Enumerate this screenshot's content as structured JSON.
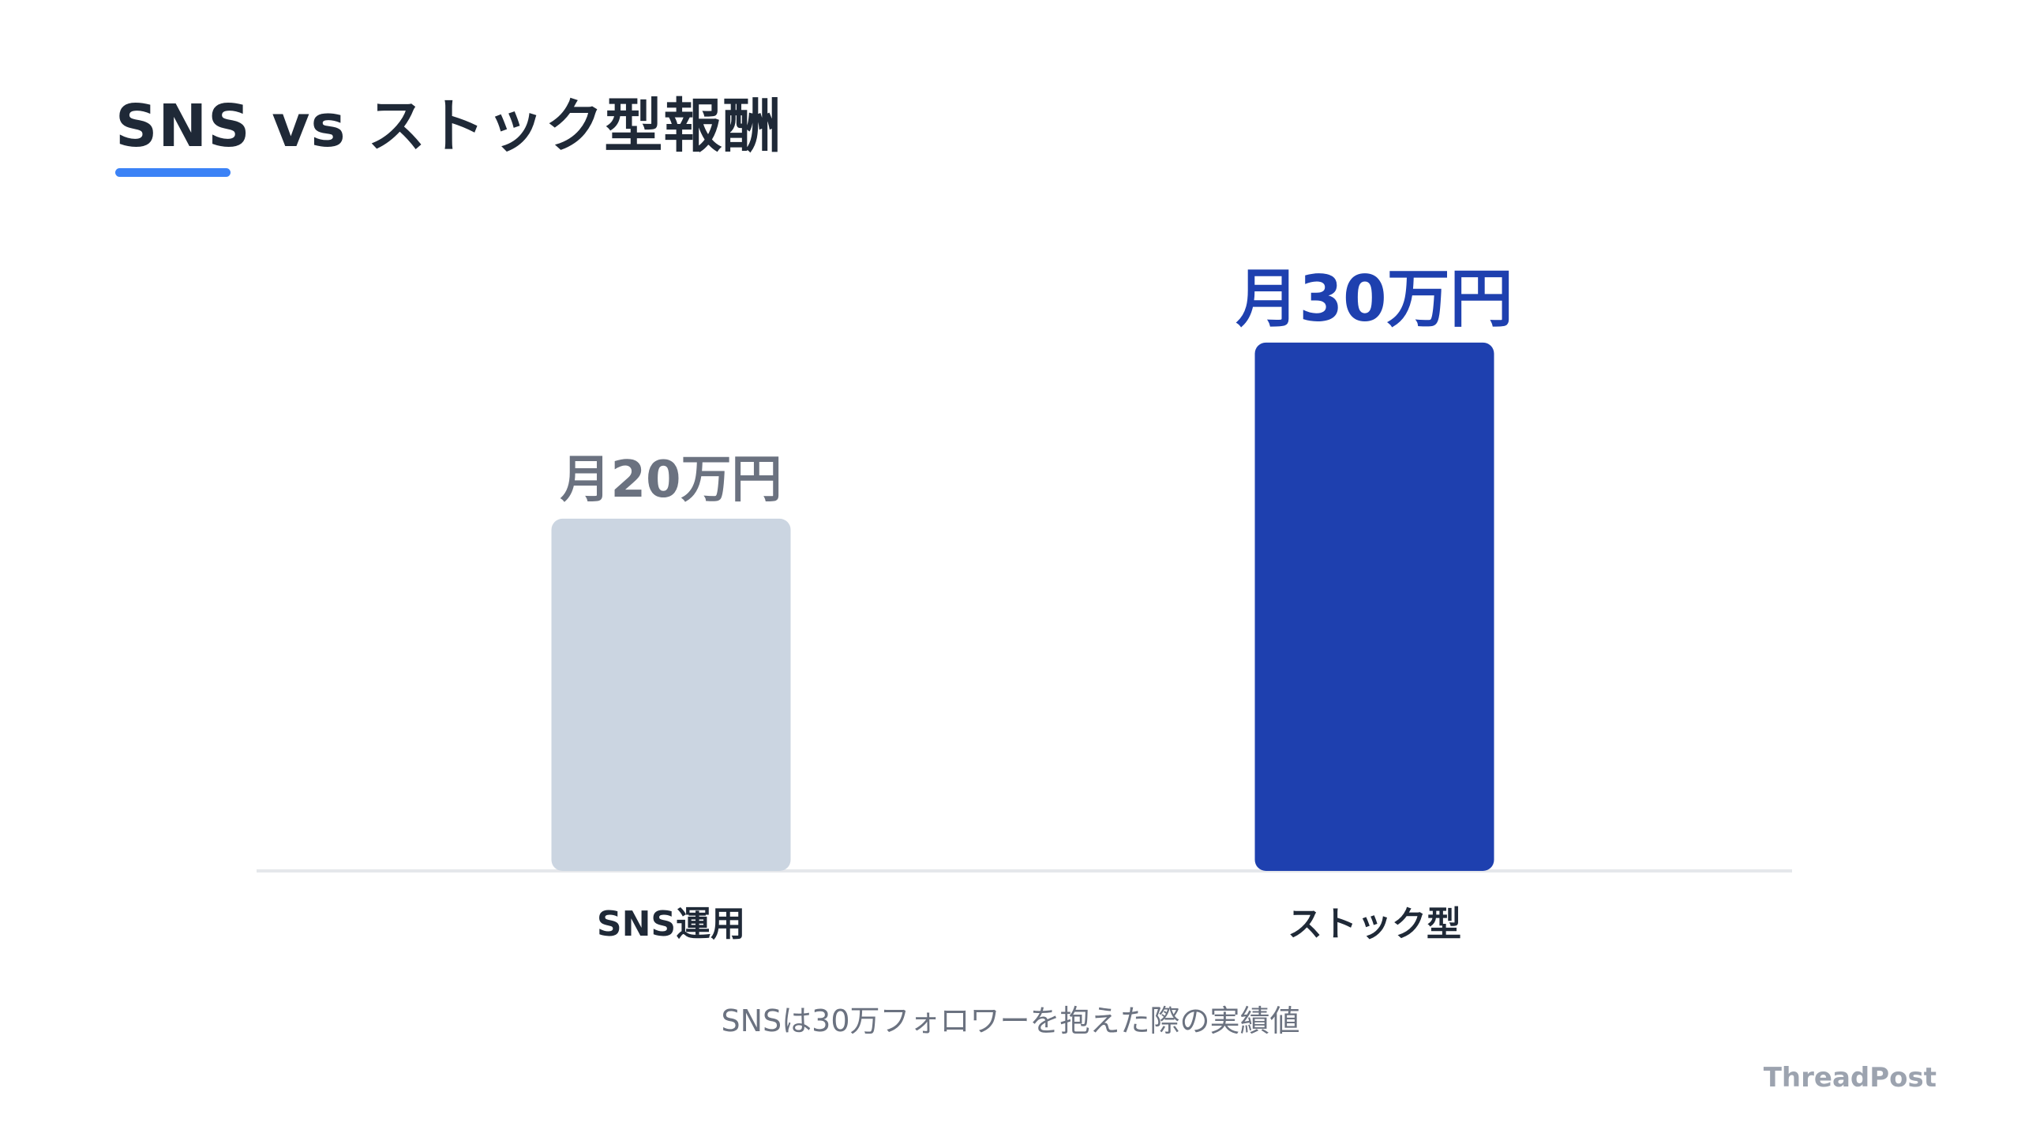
{
  "header": {
    "title": "SNS vs ストック型報酬"
  },
  "chart_data": {
    "type": "bar",
    "categories": [
      "SNS運用",
      "ストック型"
    ],
    "values": [
      20,
      30
    ],
    "data_labels": [
      "月20万円",
      "月30万円"
    ],
    "title": "SNS vs ストック型報酬",
    "xlabel": "",
    "ylabel": "",
    "ylim": [
      0,
      36
    ],
    "grid": false,
    "legend": "none",
    "colors": [
      "#cbd5e1",
      "#1e40af"
    ],
    "label_colors": [
      "#6b7280",
      "#1e40af"
    ]
  },
  "footnote": "SNSは30万フォロワーを抱えた際の実績値",
  "brand": "ThreadPost",
  "colors": {
    "accent": "#3b82f6",
    "title": "#1f2937",
    "baseline": "#e5e7eb"
  }
}
